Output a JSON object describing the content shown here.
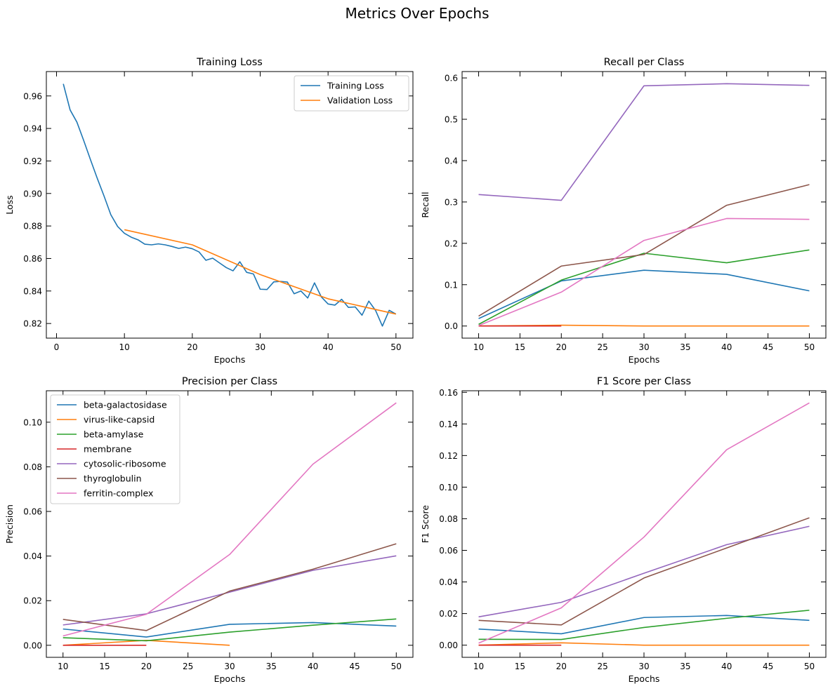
{
  "figure": {
    "suptitle": "Metrics Over Epochs"
  },
  "chart_data": [
    {
      "id": "loss",
      "type": "line",
      "title": "Training Loss",
      "xlabel": "Epochs",
      "ylabel": "Loss",
      "xlim": [
        -1.5,
        52.5
      ],
      "ylim": [
        0.811,
        0.975
      ],
      "xticks": [
        0,
        10,
        20,
        30,
        40,
        50
      ],
      "xtick_labels": [
        "0",
        "10",
        "20",
        "30",
        "40",
        "50"
      ],
      "yticks": [
        0.82,
        0.84,
        0.86,
        0.88,
        0.9,
        0.92,
        0.94,
        0.96
      ],
      "ytick_labels": [
        "0.82",
        "0.84",
        "0.86",
        "0.88",
        "0.90",
        "0.92",
        "0.94",
        "0.96"
      ],
      "grid": false,
      "legend": {
        "position": "top-right",
        "entries": [
          "Training Loss",
          "Validation Loss"
        ]
      },
      "series": [
        {
          "name": "Training Loss",
          "color": "#1f77b4",
          "x": [
            1,
            2,
            3,
            4,
            5,
            6,
            7,
            8,
            9,
            10,
            11,
            12,
            13,
            14,
            15,
            16,
            17,
            18,
            19,
            20,
            21,
            22,
            23,
            24,
            25,
            26,
            27,
            28,
            29,
            30,
            31,
            32,
            33,
            34,
            35,
            36,
            37,
            38,
            39,
            40,
            41,
            42,
            43,
            44,
            45,
            46,
            47,
            48,
            49,
            50
          ],
          "y": [
            0.9674,
            0.9514,
            0.9439,
            0.9326,
            0.9208,
            0.9093,
            0.8984,
            0.8869,
            0.8797,
            0.8755,
            0.8731,
            0.8715,
            0.8688,
            0.8684,
            0.869,
            0.8684,
            0.8674,
            0.8662,
            0.867,
            0.866,
            0.864,
            0.8589,
            0.8602,
            0.8573,
            0.8544,
            0.8524,
            0.858,
            0.8515,
            0.8505,
            0.8411,
            0.8409,
            0.8456,
            0.8459,
            0.8455,
            0.8383,
            0.84,
            0.8357,
            0.845,
            0.8364,
            0.832,
            0.8313,
            0.8349,
            0.8299,
            0.8302,
            0.8251,
            0.8338,
            0.828,
            0.8184,
            0.8281,
            0.8258
          ]
        },
        {
          "name": "Validation Loss",
          "color": "#ff7f0e",
          "x": [
            10,
            20,
            30,
            40,
            50
          ],
          "y": [
            0.8777,
            0.8684,
            0.8501,
            0.8352,
            0.8258
          ]
        }
      ]
    },
    {
      "id": "recall",
      "type": "line",
      "title": "Recall per Class",
      "xlabel": "Epochs",
      "ylabel": "Recall",
      "xlim": [
        8,
        52
      ],
      "ylim": [
        -0.0293,
        0.6154
      ],
      "xticks": [
        10,
        15,
        20,
        25,
        30,
        35,
        40,
        45,
        50
      ],
      "xtick_labels": [
        "10",
        "15",
        "20",
        "25",
        "30",
        "35",
        "40",
        "45",
        "50"
      ],
      "yticks": [
        0.0,
        0.1,
        0.2,
        0.3,
        0.4,
        0.5,
        0.6
      ],
      "ytick_labels": [
        "0.0",
        "0.1",
        "0.2",
        "0.3",
        "0.4",
        "0.5",
        "0.6"
      ],
      "grid": false,
      "series": [
        {
          "name": "beta-galactosidase",
          "color": "#1f77b4",
          "x": [
            10,
            20,
            30,
            40,
            50
          ],
          "y": [
            0.018,
            0.109,
            0.135,
            0.125,
            0.085
          ]
        },
        {
          "name": "virus-like-capsid",
          "color": "#ff7f0e",
          "x": [
            10,
            20,
            30,
            40,
            50
          ],
          "y": [
            0.0,
            0.002,
            0.0,
            0.0,
            0.0
          ]
        },
        {
          "name": "beta-amylase",
          "color": "#2ca02c",
          "x": [
            10,
            20,
            30,
            40,
            50
          ],
          "y": [
            0.004,
            0.111,
            0.176,
            0.153,
            0.184
          ]
        },
        {
          "name": "membrane",
          "color": "#d62728",
          "x": [
            10,
            20
          ],
          "y": [
            0.0,
            0.0
          ]
        },
        {
          "name": "cytosolic-ribosome",
          "color": "#9467bd",
          "x": [
            10,
            20,
            30,
            40,
            50
          ],
          "y": [
            0.318,
            0.304,
            0.581,
            0.586,
            0.582
          ]
        },
        {
          "name": "thyroglobulin",
          "color": "#8c564b",
          "x": [
            10,
            20,
            30,
            40,
            50
          ],
          "y": [
            0.024,
            0.145,
            0.173,
            0.292,
            0.342
          ]
        },
        {
          "name": "ferritin-complex",
          "color": "#e377c2",
          "x": [
            10,
            20,
            30,
            40,
            50
          ],
          "y": [
            0.001,
            0.082,
            0.207,
            0.26,
            0.258
          ]
        }
      ]
    },
    {
      "id": "precision",
      "type": "line",
      "title": "Precision per Class",
      "xlabel": "Epochs",
      "ylabel": "Precision",
      "xlim": [
        8,
        52
      ],
      "ylim": [
        -0.0054,
        0.1141
      ],
      "xticks": [
        10,
        15,
        20,
        25,
        30,
        35,
        40,
        45,
        50
      ],
      "xtick_labels": [
        "10",
        "15",
        "20",
        "25",
        "30",
        "35",
        "40",
        "45",
        "50"
      ],
      "yticks": [
        0.0,
        0.02,
        0.04,
        0.06,
        0.08,
        0.1
      ],
      "ytick_labels": [
        "0.00",
        "0.02",
        "0.04",
        "0.06",
        "0.08",
        "0.10"
      ],
      "grid": false,
      "legend": {
        "position": "top-left",
        "entries": [
          "beta-galactosidase",
          "virus-like-capsid",
          "beta-amylase",
          "membrane",
          "cytosolic-ribosome",
          "thyroglobulin",
          "ferritin-complex"
        ]
      },
      "series": [
        {
          "name": "beta-galactosidase",
          "color": "#1f77b4",
          "x": [
            10,
            20,
            30,
            40,
            50
          ],
          "y": [
            0.0073,
            0.0037,
            0.0094,
            0.0102,
            0.0086
          ]
        },
        {
          "name": "virus-like-capsid",
          "color": "#ff7f0e",
          "x": [
            10,
            20,
            30
          ],
          "y": [
            0.0,
            0.0022,
            0.0
          ]
        },
        {
          "name": "beta-amylase",
          "color": "#2ca02c",
          "x": [
            10,
            20,
            30,
            40,
            50
          ],
          "y": [
            0.0034,
            0.002,
            0.0059,
            0.009,
            0.0118
          ]
        },
        {
          "name": "membrane",
          "color": "#d62728",
          "x": [
            10,
            20
          ],
          "y": [
            0.0,
            0.0
          ]
        },
        {
          "name": "cytosolic-ribosome",
          "color": "#9467bd",
          "x": [
            10,
            20,
            30,
            40,
            50
          ],
          "y": [
            0.0091,
            0.0141,
            0.0238,
            0.0336,
            0.0401
          ]
        },
        {
          "name": "thyroglobulin",
          "color": "#8c564b",
          "x": [
            10,
            20,
            30,
            40,
            50
          ],
          "y": [
            0.0116,
            0.0066,
            0.0243,
            0.0341,
            0.0455
          ]
        },
        {
          "name": "ferritin-complex",
          "color": "#e377c2",
          "x": [
            10,
            20,
            30,
            40,
            50
          ],
          "y": [
            0.0042,
            0.0139,
            0.0407,
            0.0812,
            0.1087
          ]
        }
      ]
    },
    {
      "id": "f1",
      "type": "line",
      "title": "F1 Score per Class",
      "xlabel": "Epochs",
      "ylabel": "F1 Score",
      "xlim": [
        8,
        52
      ],
      "ylim": [
        -0.0077,
        0.161
      ],
      "xticks": [
        10,
        15,
        20,
        25,
        30,
        35,
        40,
        45,
        50
      ],
      "xtick_labels": [
        "10",
        "15",
        "20",
        "25",
        "30",
        "35",
        "40",
        "45",
        "50"
      ],
      "yticks": [
        0.0,
        0.02,
        0.04,
        0.06,
        0.08,
        0.1,
        0.12,
        0.14,
        0.16
      ],
      "ytick_labels": [
        "0.00",
        "0.02",
        "0.04",
        "0.06",
        "0.08",
        "0.10",
        "0.12",
        "0.14",
        "0.16"
      ],
      "grid": false,
      "series": [
        {
          "name": "beta-galactosidase",
          "color": "#1f77b4",
          "x": [
            10,
            20,
            30,
            40,
            50
          ],
          "y": [
            0.0102,
            0.0072,
            0.0175,
            0.0188,
            0.0157
          ]
        },
        {
          "name": "virus-like-capsid",
          "color": "#ff7f0e",
          "x": [
            10,
            20,
            30,
            40,
            50
          ],
          "y": [
            0.0,
            0.0015,
            0.0,
            0.0,
            0.0
          ]
        },
        {
          "name": "beta-amylase",
          "color": "#2ca02c",
          "x": [
            10,
            20,
            30,
            40,
            50
          ],
          "y": [
            0.0037,
            0.0036,
            0.0112,
            0.017,
            0.0221
          ]
        },
        {
          "name": "membrane",
          "color": "#d62728",
          "x": [
            10,
            20
          ],
          "y": [
            0.0,
            0.0
          ]
        },
        {
          "name": "cytosolic-ribosome",
          "color": "#9467bd",
          "x": [
            10,
            20,
            30,
            40,
            50
          ],
          "y": [
            0.0179,
            0.0271,
            0.0455,
            0.0636,
            0.0752
          ]
        },
        {
          "name": "thyroglobulin",
          "color": "#8c564b",
          "x": [
            10,
            20,
            30,
            40,
            50
          ],
          "y": [
            0.0157,
            0.0128,
            0.0425,
            0.0615,
            0.0806
          ]
        },
        {
          "name": "ferritin-complex",
          "color": "#e377c2",
          "x": [
            10,
            20,
            30,
            40,
            50
          ],
          "y": [
            0.0013,
            0.0236,
            0.0684,
            0.1237,
            0.1533
          ]
        }
      ]
    }
  ]
}
